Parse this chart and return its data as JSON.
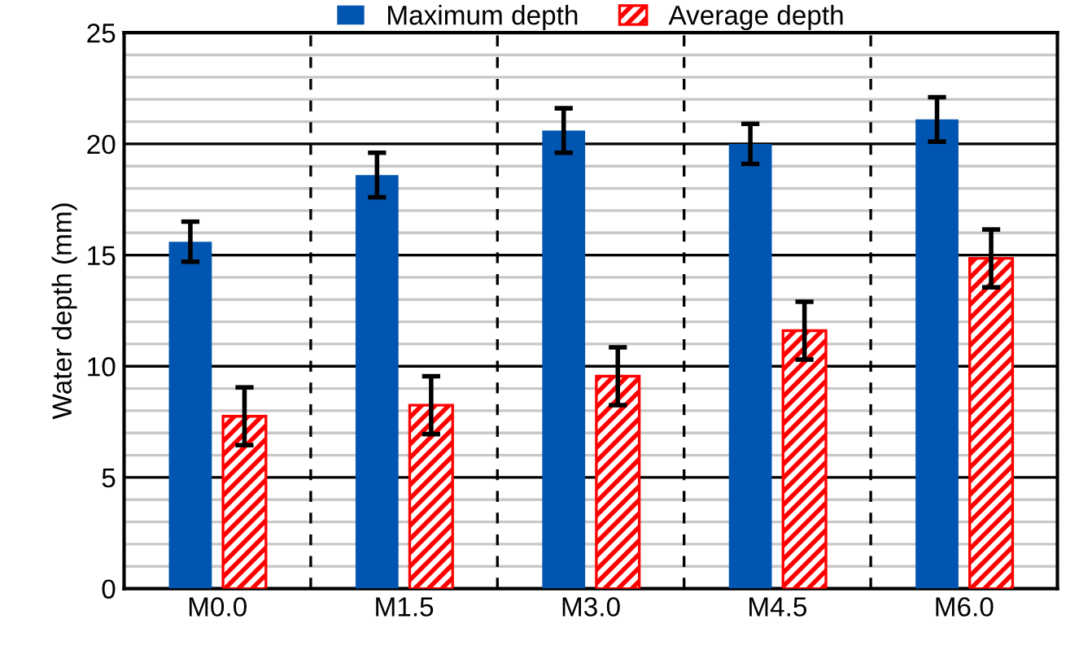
{
  "chart_data": {
    "type": "bar",
    "ylabel": "Water depth (mm)",
    "categories": [
      "M0.0",
      "M1.5",
      "M3.0",
      "M4.5",
      "M6.0"
    ],
    "series": [
      {
        "name": "Maximum depth",
        "color": "#0055b0",
        "values": [
          15.6,
          18.6,
          20.6,
          20.0,
          21.1
        ],
        "errors": [
          0.9,
          1.0,
          1.0,
          0.9,
          1.0
        ]
      },
      {
        "name": "Average depth",
        "color": "#ff0000",
        "values": [
          7.75,
          8.25,
          9.55,
          11.6,
          14.85
        ],
        "errors": [
          1.3,
          1.3,
          1.3,
          1.3,
          1.3
        ]
      }
    ],
    "ylim": [
      0,
      25
    ],
    "yticks": [
      0,
      {
        "value": 1,
        "label": null
      },
      {
        "value": 2,
        "label": null
      },
      {
        "value": 3,
        "label": null
      },
      {
        "value": 4,
        "label": null
      },
      5,
      {
        "value": 6,
        "label": null
      },
      {
        "value": 7,
        "label": null
      },
      {
        "value": 8,
        "label": null
      },
      {
        "value": 9,
        "label": null
      },
      10,
      {
        "value": 11,
        "label": null
      },
      {
        "value": 12,
        "label": null
      },
      {
        "value": 13,
        "label": null
      },
      {
        "value": 14,
        "label": null
      },
      15,
      {
        "value": 16,
        "label": null
      },
      {
        "value": 17,
        "label": null
      },
      {
        "value": 18,
        "label": null
      },
      {
        "value": 19,
        "label": null
      },
      20,
      {
        "value": 21,
        "label": null
      },
      {
        "value": 22,
        "label": null
      },
      {
        "value": 23,
        "label": null
      },
      {
        "value": 24,
        "label": null
      },
      25
    ],
    "grid": true,
    "legend": "top"
  }
}
